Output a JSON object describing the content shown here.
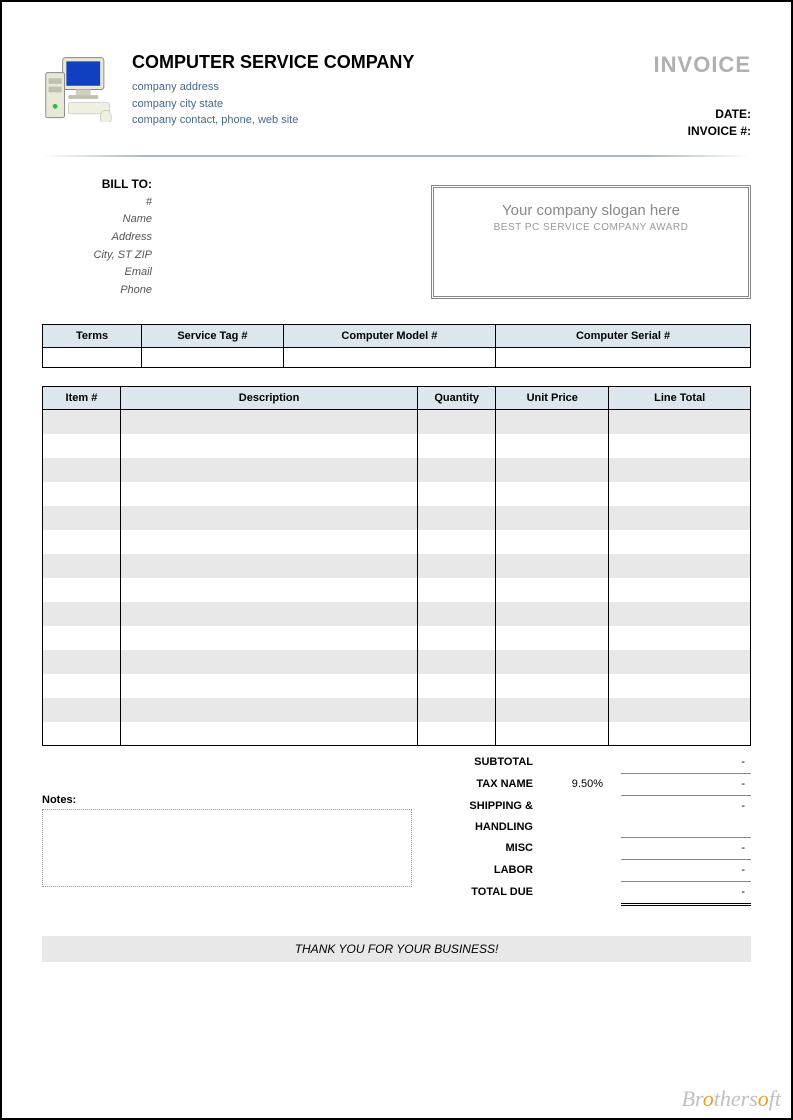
{
  "header": {
    "company_name": "COMPUTER SERVICE COMPANY",
    "address": "company address",
    "city_state": "company city state",
    "contact": "company contact, phone, web site",
    "invoice_title": "INVOICE",
    "date_label": "DATE:",
    "invoice_num_label": "INVOICE #:"
  },
  "bill_to": {
    "label": "BILL TO:",
    "num": "#",
    "name": "Name",
    "address": "Address",
    "city": "City, ST ZIP",
    "email": "Email",
    "phone": "Phone"
  },
  "slogan": {
    "main": "Your company slogan here",
    "sub": "BEST PC SERVICE COMPANY AWARD"
  },
  "meta_table": {
    "headers": [
      "Terms",
      "Service Tag #",
      "Computer Model #",
      "Computer Serial #"
    ],
    "widths": [
      "14%",
      "20%",
      "30%",
      "36%"
    ]
  },
  "items_table": {
    "headers": [
      "Item #",
      "Description",
      "Quantity",
      "Unit Price",
      "Line Total"
    ],
    "row_count": 14,
    "stripe_color": "#e8e8e8",
    "header_bg": "#dce7ed"
  },
  "totals": {
    "rows": [
      {
        "label": "SUBTOTAL",
        "pct": "",
        "val": "-"
      },
      {
        "label": "TAX NAME",
        "pct": "9.50%",
        "val": "-"
      },
      {
        "label": "SHIPPING & HANDLING",
        "pct": "",
        "val": "-"
      },
      {
        "label": "MISC",
        "pct": "",
        "val": "-"
      },
      {
        "label": "LABOR",
        "pct": "",
        "val": "-"
      },
      {
        "label": "TOTAL DUE",
        "pct": "",
        "val": "-",
        "final": true
      }
    ]
  },
  "notes_label": "Notes:",
  "thanks": "THANK YOU FOR YOUR BUSINESS!",
  "watermark": {
    "pre": "Br",
    "o": "o",
    "mid": "thers",
    "o2": "o",
    "post": "ft"
  },
  "colors": {
    "header_bg": "#dce7ed",
    "stripe": "#e8e8e8",
    "border": "#000000",
    "slogan_text": "#888888",
    "company_detail": "#4a6a8a"
  }
}
